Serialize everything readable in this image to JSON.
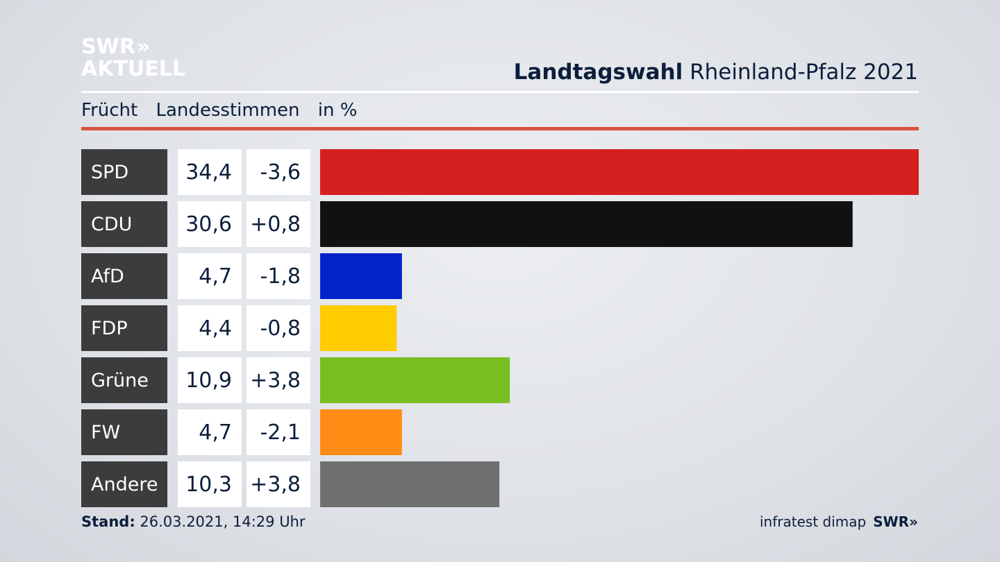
{
  "logo": {
    "line1": "SWR",
    "chevrons": "»",
    "line2": "AKTUELL"
  },
  "header": {
    "title_bold": "Landtagswahl",
    "title_rest": "Rheinland-Pfalz 2021"
  },
  "subheader": {
    "col1": "Frücht",
    "col2": "Landesstimmen",
    "col3": "in %"
  },
  "footer": {
    "stand_label": "Stand:",
    "stand_value": "26.03.2021, 14:29 Uhr",
    "source": "infratest dimap",
    "brand": "SWR»"
  },
  "colors": {
    "SPD": "#d61f1f",
    "CDU": "#111111",
    "AfD": "#0024c8",
    "FDP": "#ffcc00",
    "Grüne": "#78be20",
    "FW": "#ff8c14",
    "Andere": "#707070"
  },
  "chart_data": {
    "type": "bar",
    "orientation": "horizontal",
    "categories": [
      "SPD",
      "CDU",
      "AfD",
      "FDP",
      "Grüne",
      "FW",
      "Andere"
    ],
    "values": [
      34.4,
      30.6,
      4.7,
      4.4,
      10.9,
      4.7,
      10.3
    ],
    "value_labels": [
      "34,4",
      "30,6",
      "4,7",
      "4,4",
      "10,9",
      "4,7",
      "10,3"
    ],
    "diff_labels": [
      "-3,6",
      "+0,8",
      "-1,8",
      "-0,8",
      "+3,8",
      "-2,1",
      "+3,8"
    ],
    "xlim": [
      0,
      34.4
    ]
  }
}
